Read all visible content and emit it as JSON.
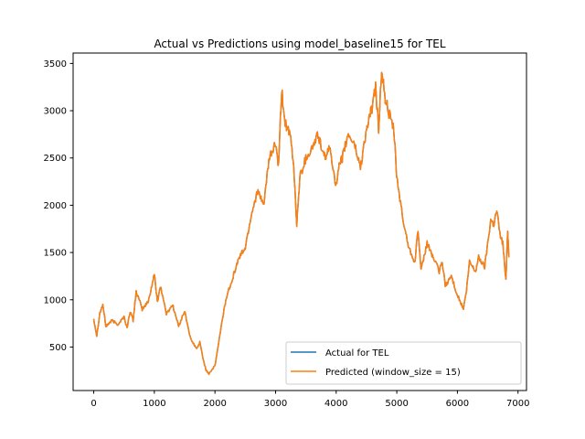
{
  "chart_data": {
    "type": "line",
    "title": "Actual vs Predictions using model_baseline15 for TEL",
    "xlabel": "",
    "ylabel": "",
    "xlim": [
      -340,
      7140
    ],
    "ylim": [
      40,
      3610
    ],
    "x_ticks": [
      0,
      1000,
      2000,
      3000,
      4000,
      5000,
      6000,
      7000
    ],
    "y_ticks": [
      500,
      1000,
      1500,
      2000,
      2500,
      3000,
      3500
    ],
    "grid": false,
    "legend_position": "lower-right",
    "series": [
      {
        "name": "Actual for TEL",
        "color": "#1f77b4",
        "anchors": [
          [
            0,
            800
          ],
          [
            50,
            620
          ],
          [
            100,
            860
          ],
          [
            150,
            950
          ],
          [
            200,
            720
          ],
          [
            300,
            780
          ],
          [
            400,
            740
          ],
          [
            500,
            820
          ],
          [
            550,
            700
          ],
          [
            600,
            880
          ],
          [
            650,
            780
          ],
          [
            700,
            1090
          ],
          [
            800,
            900
          ],
          [
            900,
            980
          ],
          [
            1000,
            1270
          ],
          [
            1050,
            980
          ],
          [
            1100,
            1150
          ],
          [
            1200,
            850
          ],
          [
            1300,
            950
          ],
          [
            1400,
            720
          ],
          [
            1500,
            880
          ],
          [
            1600,
            580
          ],
          [
            1700,
            480
          ],
          [
            1750,
            550
          ],
          [
            1800,
            390
          ],
          [
            1850,
            260
          ],
          [
            1900,
            220
          ],
          [
            2000,
            300
          ],
          [
            2100,
            700
          ],
          [
            2150,
            900
          ],
          [
            2200,
            1050
          ],
          [
            2300,
            1250
          ],
          [
            2400,
            1450
          ],
          [
            2500,
            1550
          ],
          [
            2600,
            1900
          ],
          [
            2700,
            2150
          ],
          [
            2800,
            2000
          ],
          [
            2900,
            2500
          ],
          [
            3000,
            2650
          ],
          [
            3050,
            2400
          ],
          [
            3100,
            3220
          ],
          [
            3150,
            2900
          ],
          [
            3250,
            2700
          ],
          [
            3300,
            2400
          ],
          [
            3350,
            1800
          ],
          [
            3400,
            2300
          ],
          [
            3500,
            2500
          ],
          [
            3600,
            2600
          ],
          [
            3700,
            2750
          ],
          [
            3800,
            2500
          ],
          [
            3900,
            2600
          ],
          [
            4000,
            2200
          ],
          [
            4050,
            2400
          ],
          [
            4100,
            2500
          ],
          [
            4200,
            2750
          ],
          [
            4300,
            2650
          ],
          [
            4400,
            2400
          ],
          [
            4500,
            2800
          ],
          [
            4600,
            3050
          ],
          [
            4650,
            3250
          ],
          [
            4700,
            2800
          ],
          [
            4750,
            3450
          ],
          [
            4800,
            3150
          ],
          [
            4900,
            2900
          ],
          [
            4950,
            2800
          ],
          [
            5000,
            2300
          ],
          [
            5100,
            1850
          ],
          [
            5150,
            1700
          ],
          [
            5200,
            1550
          ],
          [
            5300,
            1400
          ],
          [
            5350,
            1750
          ],
          [
            5400,
            1300
          ],
          [
            5500,
            1600
          ],
          [
            5600,
            1450
          ],
          [
            5700,
            1300
          ],
          [
            5750,
            1400
          ],
          [
            5800,
            1150
          ],
          [
            5900,
            1250
          ],
          [
            6000,
            1050
          ],
          [
            6100,
            900
          ],
          [
            6150,
            1100
          ],
          [
            6200,
            1400
          ],
          [
            6300,
            1300
          ],
          [
            6350,
            1450
          ],
          [
            6450,
            1350
          ],
          [
            6500,
            1600
          ],
          [
            6550,
            1850
          ],
          [
            6600,
            1800
          ],
          [
            6650,
            1950
          ],
          [
            6700,
            1700
          ],
          [
            6750,
            1600
          ],
          [
            6800,
            1200
          ],
          [
            6830,
            1750
          ],
          [
            6850,
            1450
          ]
        ]
      },
      {
        "name": "Predicted (window_size = 15)",
        "color": "#ff7f0e",
        "anchors": [
          [
            0,
            800
          ],
          [
            50,
            620
          ],
          [
            100,
            860
          ],
          [
            150,
            950
          ],
          [
            200,
            720
          ],
          [
            300,
            780
          ],
          [
            400,
            740
          ],
          [
            500,
            820
          ],
          [
            550,
            700
          ],
          [
            600,
            880
          ],
          [
            650,
            780
          ],
          [
            700,
            1090
          ],
          [
            800,
            900
          ],
          [
            900,
            980
          ],
          [
            1000,
            1270
          ],
          [
            1050,
            980
          ],
          [
            1100,
            1150
          ],
          [
            1200,
            850
          ],
          [
            1300,
            950
          ],
          [
            1400,
            720
          ],
          [
            1500,
            880
          ],
          [
            1600,
            580
          ],
          [
            1700,
            480
          ],
          [
            1750,
            550
          ],
          [
            1800,
            390
          ],
          [
            1850,
            260
          ],
          [
            1900,
            220
          ],
          [
            2000,
            300
          ],
          [
            2100,
            700
          ],
          [
            2150,
            900
          ],
          [
            2200,
            1050
          ],
          [
            2300,
            1250
          ],
          [
            2400,
            1450
          ],
          [
            2500,
            1550
          ],
          [
            2600,
            1900
          ],
          [
            2700,
            2150
          ],
          [
            2800,
            2000
          ],
          [
            2900,
            2500
          ],
          [
            3000,
            2650
          ],
          [
            3050,
            2400
          ],
          [
            3100,
            3220
          ],
          [
            3150,
            2900
          ],
          [
            3250,
            2700
          ],
          [
            3300,
            2400
          ],
          [
            3350,
            1800
          ],
          [
            3400,
            2300
          ],
          [
            3500,
            2500
          ],
          [
            3600,
            2600
          ],
          [
            3700,
            2750
          ],
          [
            3800,
            2500
          ],
          [
            3900,
            2600
          ],
          [
            4000,
            2200
          ],
          [
            4050,
            2400
          ],
          [
            4100,
            2500
          ],
          [
            4200,
            2750
          ],
          [
            4300,
            2650
          ],
          [
            4400,
            2400
          ],
          [
            4500,
            2800
          ],
          [
            4600,
            3050
          ],
          [
            4650,
            3250
          ],
          [
            4700,
            2800
          ],
          [
            4750,
            3450
          ],
          [
            4800,
            3150
          ],
          [
            4900,
            2900
          ],
          [
            4950,
            2800
          ],
          [
            5000,
            2300
          ],
          [
            5100,
            1850
          ],
          [
            5150,
            1700
          ],
          [
            5200,
            1550
          ],
          [
            5300,
            1400
          ],
          [
            5350,
            1750
          ],
          [
            5400,
            1300
          ],
          [
            5500,
            1600
          ],
          [
            5600,
            1450
          ],
          [
            5700,
            1300
          ],
          [
            5750,
            1400
          ],
          [
            5800,
            1150
          ],
          [
            5900,
            1250
          ],
          [
            6000,
            1050
          ],
          [
            6100,
            900
          ],
          [
            6150,
            1100
          ],
          [
            6200,
            1400
          ],
          [
            6300,
            1300
          ],
          [
            6350,
            1450
          ],
          [
            6450,
            1350
          ],
          [
            6500,
            1600
          ],
          [
            6550,
            1850
          ],
          [
            6600,
            1800
          ],
          [
            6650,
            1950
          ],
          [
            6700,
            1700
          ],
          [
            6750,
            1600
          ],
          [
            6800,
            1200
          ],
          [
            6830,
            1750
          ],
          [
            6850,
            1450
          ]
        ]
      }
    ]
  }
}
